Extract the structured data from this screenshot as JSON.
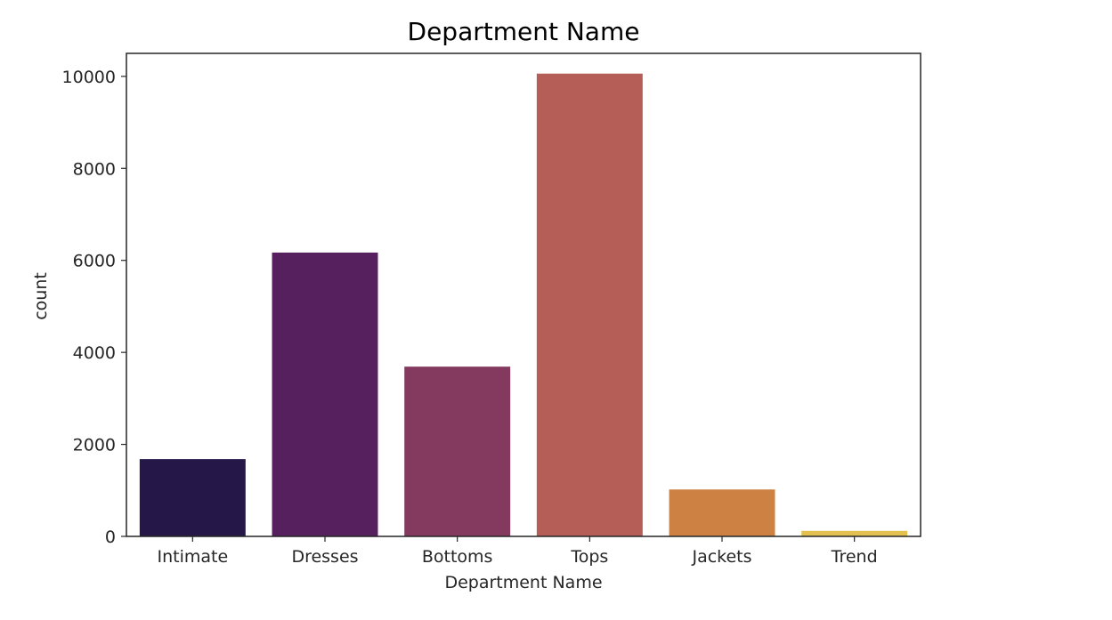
{
  "chart_data": {
    "type": "bar",
    "title": "Department Name",
    "xlabel": "Department Name",
    "ylabel": "count",
    "categories": [
      "Intimate",
      "Dresses",
      "Bottoms",
      "Tops",
      "Jackets",
      "Trend"
    ],
    "values": [
      1680,
      6170,
      3690,
      10060,
      1020,
      120
    ],
    "colors": [
      "#251848",
      "#55205d",
      "#843a5f",
      "#b45e57",
      "#cd8244",
      "#e2c150"
    ],
    "ylim": [
      0,
      10500
    ],
    "yticks": [
      0,
      2000,
      4000,
      6000,
      8000,
      10000
    ],
    "grid": false
  }
}
